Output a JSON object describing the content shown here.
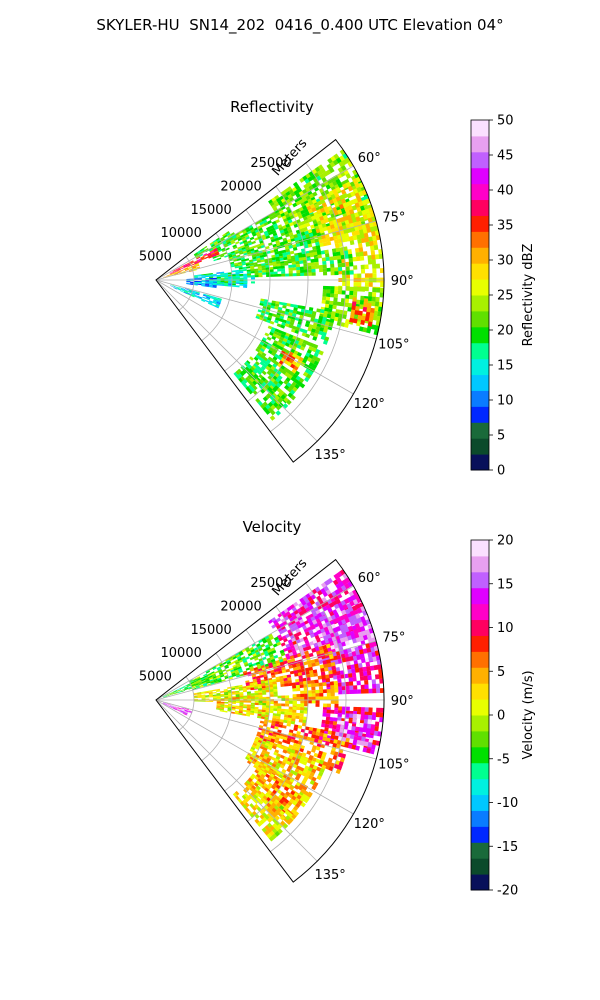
{
  "figure": {
    "suptitle": "SKYLER-HU  SN14_202  0416_0.400 UTC Elevation 04°"
  },
  "chart_data": [
    {
      "type": "heatmap",
      "projection": "polar-sector",
      "title": "Reflectivity",
      "range_axis_label": "Meters",
      "range_ticks": [
        "5000",
        "10000",
        "15000",
        "20000",
        "25000"
      ],
      "range_tick_values": [
        5000,
        10000,
        15000,
        20000,
        25000
      ],
      "range_max": 30000,
      "azimuth_ticks": [
        "60°",
        "75°",
        "90°",
        "105°",
        "120°",
        "135°"
      ],
      "azimuth_tick_values": [
        60,
        75,
        90,
        105,
        120,
        135
      ],
      "azimuth_range": [
        52,
        143
      ],
      "grid": true,
      "colorbar": {
        "label": "Reflectivity dBZ",
        "min": 0,
        "max": 50,
        "ticks": [
          "0",
          "5",
          "10",
          "15",
          "20",
          "25",
          "30",
          "35",
          "40",
          "45",
          "50"
        ],
        "tick_values": [
          0,
          5,
          10,
          15,
          20,
          25,
          30,
          35,
          40,
          45,
          50
        ],
        "colors": [
          "#08105a",
          "#0b4a2b",
          "#1a6a3a",
          "#0028ff",
          "#0a7cff",
          "#00c8ff",
          "#00f0e0",
          "#00ff90",
          "#00e000",
          "#60e000",
          "#a8f000",
          "#e8ff00",
          "#ffe000",
          "#ffb000",
          "#ff7000",
          "#ff2000",
          "#ff0060",
          "#ff00c8",
          "#e000ff",
          "#c060ff",
          "#e8a0f0",
          "#fbe0ff"
        ]
      },
      "echo_cells": [
        {
          "az": [
            55,
            75
          ],
          "r": [
            18000,
            30000
          ],
          "value": 22
        },
        {
          "az": [
            63,
            78
          ],
          "r": [
            22000,
            30000
          ],
          "value": 28
        },
        {
          "az": [
            75,
            92
          ],
          "r": [
            24000,
            30000
          ],
          "value": 27
        },
        {
          "az": [
            60,
            72
          ],
          "r": [
            8000,
            18000
          ],
          "value": 20
        },
        {
          "az": [
            72,
            82
          ],
          "r": [
            10000,
            22000
          ],
          "value": 20
        },
        {
          "az": [
            80,
            88
          ],
          "r": [
            12000,
            26000
          ],
          "value": 21
        },
        {
          "az": [
            83,
            95
          ],
          "r": [
            5000,
            12000
          ],
          "value": 15
        },
        {
          "az": [
            88,
            97
          ],
          "r": [
            4000,
            8000
          ],
          "value": 11
        },
        {
          "az": [
            92,
            104
          ],
          "r": [
            22000,
            30000
          ],
          "value": 23
        },
        {
          "az": [
            95,
            102
          ],
          "r": [
            26000,
            29000
          ],
          "value": 33
        },
        {
          "az": [
            100,
            110
          ],
          "r": [
            14000,
            24000
          ],
          "value": 20
        },
        {
          "az": [
            106,
            114
          ],
          "r": [
            2000,
            9000
          ],
          "value": 14
        },
        {
          "az": [
            112,
            124
          ],
          "r": [
            16000,
            24000
          ],
          "value": 21
        },
        {
          "az": [
            118,
            126
          ],
          "r": [
            19000,
            22000
          ],
          "value": 31
        },
        {
          "az": [
            124,
            135
          ],
          "r": [
            16000,
            24000
          ],
          "value": 20
        },
        {
          "az": [
            132,
            140
          ],
          "r": [
            16000,
            24000
          ],
          "value": 20
        },
        {
          "az": [
            62,
            68
          ],
          "r": [
            2000,
            9000
          ],
          "value": 36
        },
        {
          "az": [
            68,
            76
          ],
          "r": [
            1000,
            6000
          ],
          "value": 30
        },
        {
          "az": [
            56,
            62
          ],
          "r": [
            6000,
            12000
          ],
          "value": 20
        },
        {
          "az": [
            86,
            92
          ],
          "r": [
            8000,
            13000
          ],
          "value": 17
        }
      ]
    },
    {
      "type": "heatmap",
      "projection": "polar-sector",
      "title": "Velocity",
      "range_axis_label": "Meters",
      "range_ticks": [
        "5000",
        "10000",
        "15000",
        "20000",
        "25000"
      ],
      "range_tick_values": [
        5000,
        10000,
        15000,
        20000,
        25000
      ],
      "range_max": 30000,
      "azimuth_ticks": [
        "60°",
        "75°",
        "90°",
        "105°",
        "120°",
        "135°"
      ],
      "azimuth_tick_values": [
        60,
        75,
        90,
        105,
        120,
        135
      ],
      "azimuth_range": [
        52,
        143
      ],
      "grid": true,
      "colorbar": {
        "label": "Velocity (m/s)",
        "min": -20,
        "max": 20,
        "ticks": [
          "-20",
          "-15",
          "-10",
          "-5",
          "0",
          "5",
          "10",
          "15",
          "20"
        ],
        "tick_values": [
          -20,
          -15,
          -10,
          -5,
          0,
          5,
          10,
          15,
          20
        ],
        "colors": [
          "#08105a",
          "#0b4a2b",
          "#1a6a3a",
          "#0028ff",
          "#0a7cff",
          "#00c8ff",
          "#00f0e0",
          "#00ff90",
          "#00e000",
          "#60e000",
          "#a8f000",
          "#e8ff00",
          "#ffe000",
          "#ffb000",
          "#ff7000",
          "#ff2000",
          "#ff0060",
          "#ff00c8",
          "#e000ff",
          "#c060ff",
          "#e8a0f0",
          "#fbe0ff"
        ]
      },
      "echo_cells": [
        {
          "az": [
            55,
            72
          ],
          "r": [
            18000,
            30000
          ],
          "value": 13
        },
        {
          "az": [
            62,
            80
          ],
          "r": [
            22000,
            30000
          ],
          "value": 15
        },
        {
          "az": [
            75,
            88
          ],
          "r": [
            22000,
            30000
          ],
          "value": 12
        },
        {
          "az": [
            92,
            104
          ],
          "r": [
            22000,
            30000
          ],
          "value": 11
        },
        {
          "az": [
            60,
            74
          ],
          "r": [
            5000,
            18000
          ],
          "value": -3
        },
        {
          "az": [
            72,
            84
          ],
          "r": [
            12000,
            24000
          ],
          "value": 7
        },
        {
          "az": [
            80,
            92
          ],
          "r": [
            5000,
            16000
          ],
          "value": 1
        },
        {
          "az": [
            88,
            100
          ],
          "r": [
            8000,
            20000
          ],
          "value": 2
        },
        {
          "az": [
            100,
            112
          ],
          "r": [
            14000,
            26000
          ],
          "value": 6
        },
        {
          "az": [
            106,
            116
          ],
          "r": [
            1000,
            5000
          ],
          "value": 15
        },
        {
          "az": [
            110,
            124
          ],
          "r": [
            14000,
            24000
          ],
          "value": 3
        },
        {
          "az": [
            120,
            132
          ],
          "r": [
            16000,
            24000
          ],
          "value": 4
        },
        {
          "az": [
            130,
            140
          ],
          "r": [
            16000,
            24000
          ],
          "value": 2
        },
        {
          "az": [
            64,
            72
          ],
          "r": [
            1000,
            8000
          ],
          "value": -4
        },
        {
          "az": [
            84,
            92
          ],
          "r": [
            18000,
            24000
          ],
          "value": 5
        },
        {
          "az": [
            94,
            102
          ],
          "r": [
            24000,
            29000
          ],
          "value": 16
        }
      ]
    }
  ]
}
